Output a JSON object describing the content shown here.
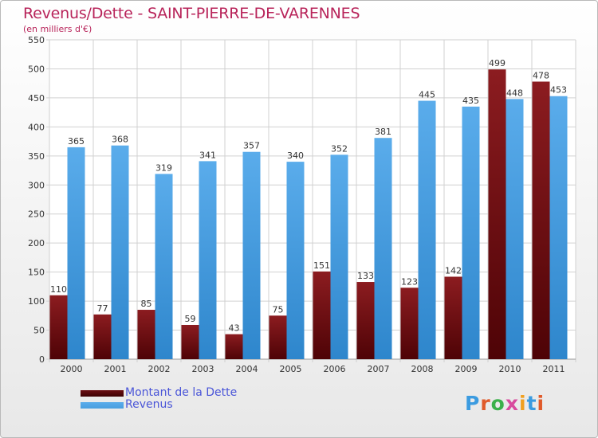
{
  "chart_data": {
    "type": "bar",
    "title": "Revenus/Dette - SAINT-PIERRE-DE-VARENNES",
    "subtitle": "(en milliers d'€)",
    "categories": [
      "2000",
      "2001",
      "2002",
      "2003",
      "2004",
      "2005",
      "2006",
      "2007",
      "2008",
      "2009",
      "2010",
      "2011"
    ],
    "series": [
      {
        "name": "Montant de la Dette",
        "color": "#6b0e12",
        "values": [
          110,
          77,
          85,
          59,
          43,
          75,
          151,
          133,
          123,
          142,
          499,
          478
        ]
      },
      {
        "name": "Revenus",
        "color": "#4a9fdf",
        "values": [
          365,
          368,
          319,
          341,
          357,
          340,
          352,
          381,
          445,
          435,
          448,
          453
        ]
      }
    ],
    "ylim": [
      0,
      550
    ],
    "yticks": [
      0,
      50,
      100,
      150,
      200,
      250,
      300,
      350,
      400,
      450,
      500,
      550
    ],
    "grid": true,
    "legend": "bottom-left"
  },
  "logo": {
    "text": "Proxiti",
    "letter_colors": [
      "#3b9be0",
      "#e05a2a",
      "#3bb04a",
      "#d84b9e",
      "#f0a020",
      "#3b9be0",
      "#e05a2a"
    ]
  }
}
